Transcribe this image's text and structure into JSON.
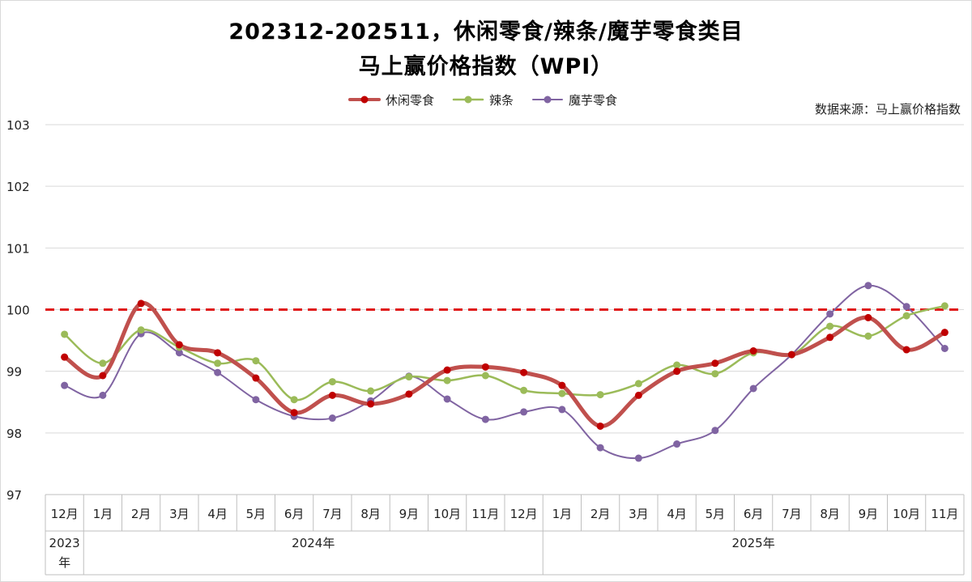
{
  "chart_data": {
    "type": "line",
    "title": "202312-202511，休闲零食/辣条/魔芋零食类目",
    "subtitle": "马上赢价格指数（WPI）",
    "source": "数据来源：马上赢价格指数",
    "categories": [
      "12月",
      "1月",
      "2月",
      "3月",
      "4月",
      "5月",
      "6月",
      "7月",
      "8月",
      "9月",
      "10月",
      "11月",
      "12月",
      "1月",
      "2月",
      "3月",
      "4月",
      "5月",
      "6月",
      "7月",
      "8月",
      "9月",
      "10月",
      "11月"
    ],
    "year_groups": [
      {
        "label": "2023年",
        "start": 0,
        "end": 0
      },
      {
        "label": "2024年",
        "start": 1,
        "end": 12
      },
      {
        "label": "2025年",
        "start": 13,
        "end": 23
      }
    ],
    "ylim": [
      97,
      103
    ],
    "yticks": [
      97,
      98,
      99,
      100,
      101,
      102,
      103
    ],
    "grid": true,
    "legend_position": "top",
    "reference_line": {
      "value": 100,
      "color": "#e01b1b",
      "style": "dashed"
    },
    "series": [
      {
        "name": "休闲零食",
        "line_color": "#c0504d",
        "marker_color": "#c00000",
        "values": [
          99.23,
          98.93,
          100.1,
          99.43,
          99.3,
          98.89,
          98.33,
          98.61,
          98.47,
          98.63,
          99.02,
          99.07,
          98.98,
          98.77,
          98.11,
          98.61,
          99.0,
          99.13,
          99.33,
          99.27,
          99.55,
          99.87,
          99.35,
          99.63
        ]
      },
      {
        "name": "辣条",
        "line_color": "#9bbb59",
        "marker_color": "#9bbb59",
        "values": [
          99.6,
          99.13,
          99.67,
          99.39,
          99.13,
          99.17,
          98.54,
          98.83,
          98.68,
          98.91,
          98.85,
          98.93,
          98.69,
          98.64,
          98.62,
          98.8,
          99.1,
          98.96,
          99.3,
          99.27,
          99.73,
          99.57,
          99.9,
          100.06
        ]
      },
      {
        "name": "魔芋零食",
        "line_color": "#8064a2",
        "marker_color": "#8064a2",
        "values": [
          98.77,
          98.61,
          99.61,
          99.3,
          98.98,
          98.54,
          98.27,
          98.24,
          98.52,
          98.92,
          98.55,
          98.22,
          98.34,
          98.38,
          97.76,
          97.59,
          97.82,
          98.04,
          98.72,
          99.27,
          99.93,
          100.39,
          100.05,
          99.37
        ]
      }
    ]
  }
}
